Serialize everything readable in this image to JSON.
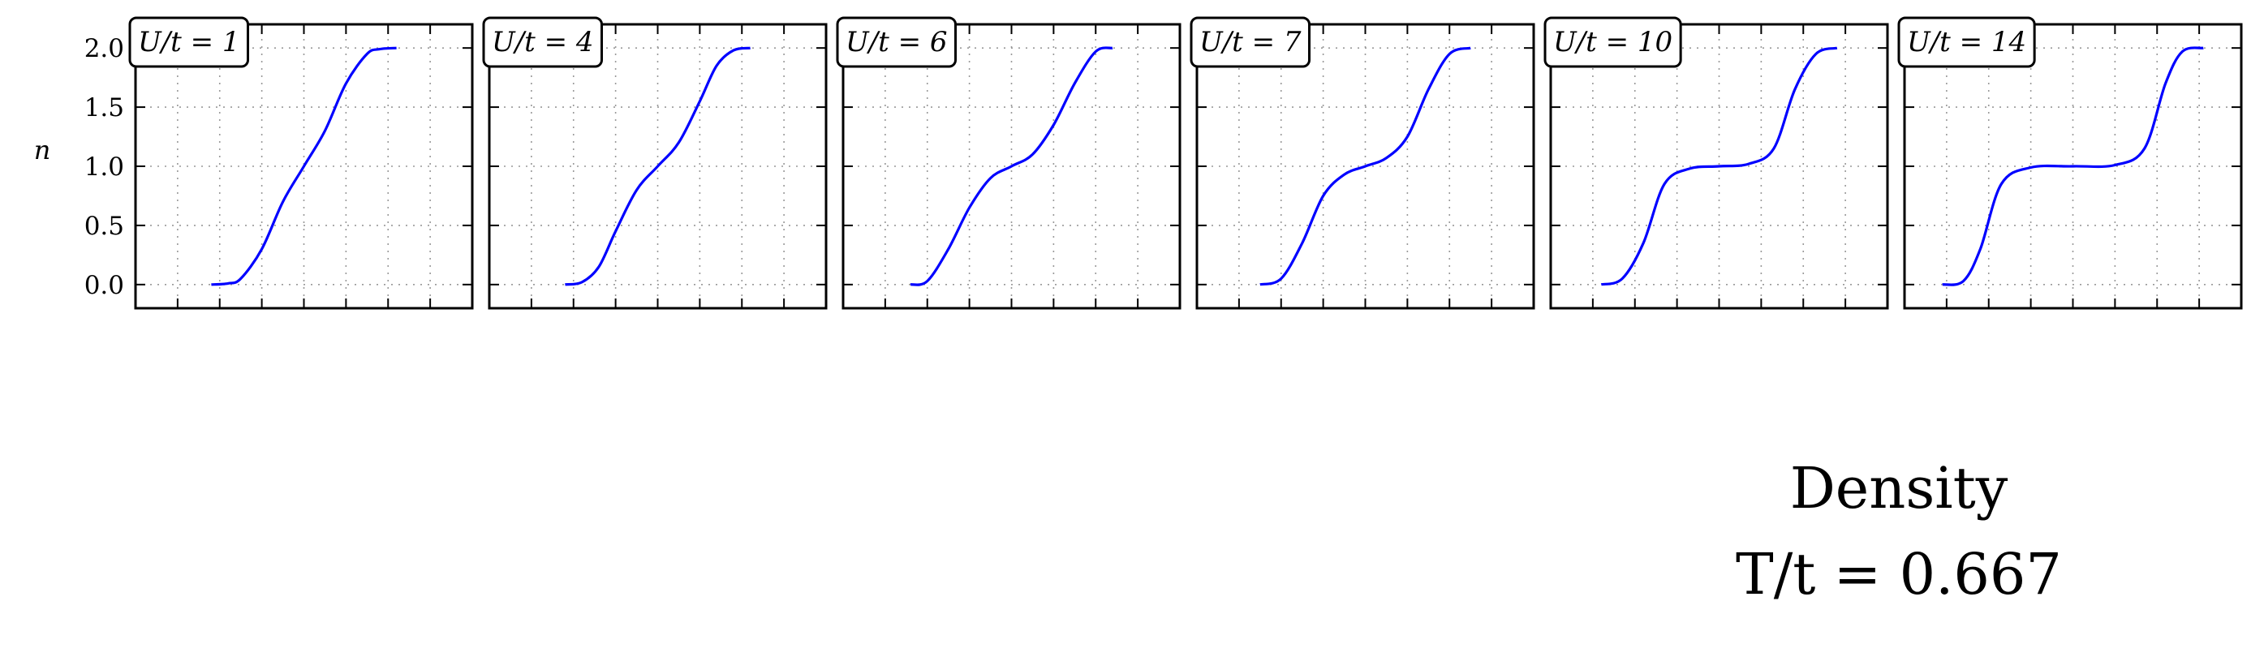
{
  "chart_data": {
    "type": "line",
    "ylabel": "n",
    "ylim": [
      -0.2,
      2.2
    ],
    "yticks": [
      "0.0",
      "0.5",
      "1.0",
      "1.5",
      "2.0"
    ],
    "ytick_values": [
      0,
      0.5,
      1.0,
      1.5,
      2.0
    ],
    "xlim": [
      -4,
      4
    ],
    "xticks": [
      -4,
      -3,
      -2,
      -1,
      0,
      1,
      2,
      3,
      4
    ],
    "grid": true,
    "line_color": "#0000ff",
    "panels": [
      {
        "label": "U/t = 1",
        "U": 1,
        "x": [
          -2.2,
          -1.8,
          -1.5,
          -1.0,
          -0.5,
          0.0,
          0.5,
          1.0,
          1.5,
          1.8,
          2.2
        ],
        "y": [
          0.0,
          0.01,
          0.05,
          0.3,
          0.7,
          1.0,
          1.3,
          1.7,
          1.95,
          1.99,
          2.0
        ]
      },
      {
        "label": "U/t = 4",
        "U": 4,
        "x": [
          -2.2,
          -1.8,
          -1.4,
          -1.0,
          -0.5,
          0.0,
          0.5,
          1.0,
          1.4,
          1.8,
          2.2
        ],
        "y": [
          0.0,
          0.02,
          0.15,
          0.45,
          0.8,
          1.0,
          1.2,
          1.55,
          1.85,
          1.98,
          2.0
        ]
      },
      {
        "label": "U/t = 6",
        "U": 6,
        "x": [
          -2.4,
          -2.0,
          -1.5,
          -1.0,
          -0.5,
          0.0,
          0.5,
          1.0,
          1.5,
          2.0,
          2.4
        ],
        "y": [
          0.0,
          0.03,
          0.3,
          0.65,
          0.9,
          1.0,
          1.1,
          1.35,
          1.7,
          1.97,
          2.0
        ]
      },
      {
        "label": "U/t = 7",
        "U": 7,
        "x": [
          -2.5,
          -2.0,
          -1.5,
          -1.0,
          -0.5,
          0.0,
          0.5,
          1.0,
          1.5,
          2.0,
          2.5
        ],
        "y": [
          0.0,
          0.05,
          0.35,
          0.75,
          0.93,
          1.0,
          1.07,
          1.25,
          1.65,
          1.95,
          2.0
        ]
      },
      {
        "label": "U/t = 10",
        "U": 10,
        "x": [
          -2.8,
          -2.3,
          -1.8,
          -1.3,
          -0.7,
          0.0,
          0.7,
          1.3,
          1.8,
          2.3,
          2.8
        ],
        "y": [
          0.0,
          0.05,
          0.35,
          0.85,
          0.98,
          1.0,
          1.02,
          1.15,
          1.65,
          1.95,
          2.0
        ]
      },
      {
        "label": "U/t = 14",
        "U": 14,
        "x": [
          -3.1,
          -2.6,
          -2.2,
          -1.7,
          -1.0,
          0.0,
          1.0,
          1.7,
          2.2,
          2.6,
          3.1
        ],
        "y": [
          0.0,
          0.03,
          0.3,
          0.85,
          0.99,
          1.0,
          1.01,
          1.15,
          1.7,
          1.97,
          2.0
        ]
      }
    ],
    "annotation": [
      "Density",
      "T/t = 0.667"
    ]
  }
}
